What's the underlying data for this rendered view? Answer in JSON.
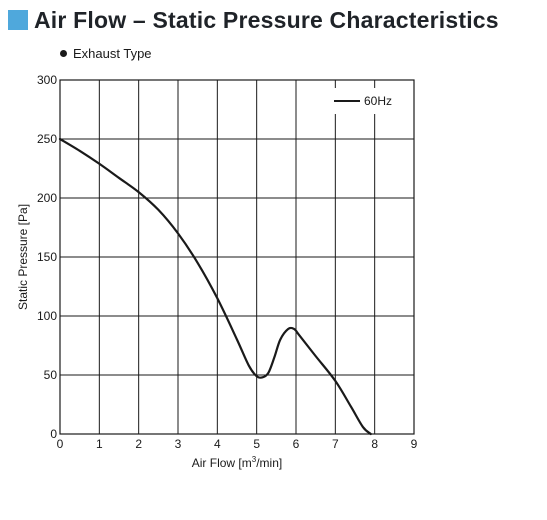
{
  "header": {
    "title": "Air Flow – Static Pressure Characteristics",
    "accent_color": "#4fa8dc",
    "subtitle": "Exhaust Type"
  },
  "chart_data": {
    "type": "line",
    "title": "",
    "xlabel_main": "Air Flow [m",
    "xlabel_sup": "3",
    "xlabel_tail": "/min]",
    "ylabel": "Static Pressure [Pa]",
    "xlim": [
      0,
      9
    ],
    "ylim": [
      0,
      300
    ],
    "xticks": [
      0,
      1,
      2,
      3,
      4,
      5,
      6,
      7,
      8,
      9
    ],
    "yticks": [
      0,
      50,
      100,
      150,
      200,
      250,
      300
    ],
    "grid": true,
    "legend_position": "top-right",
    "series": [
      {
        "name": "60Hz",
        "color": "#1a1a1a",
        "x": [
          0,
          0.5,
          1,
          1.5,
          2,
          2.5,
          3,
          3.5,
          4,
          4.5,
          4.8,
          5.0,
          5.15,
          5.3,
          5.45,
          5.6,
          5.8,
          5.95,
          6.1,
          6.5,
          7.0,
          7.4,
          7.7,
          7.9
        ],
        "y": [
          250,
          240,
          229,
          217,
          205,
          190,
          170,
          145,
          115,
          80,
          58,
          49,
          48,
          52,
          65,
          80,
          89,
          89,
          83,
          66,
          45,
          23,
          6,
          0
        ]
      }
    ]
  }
}
